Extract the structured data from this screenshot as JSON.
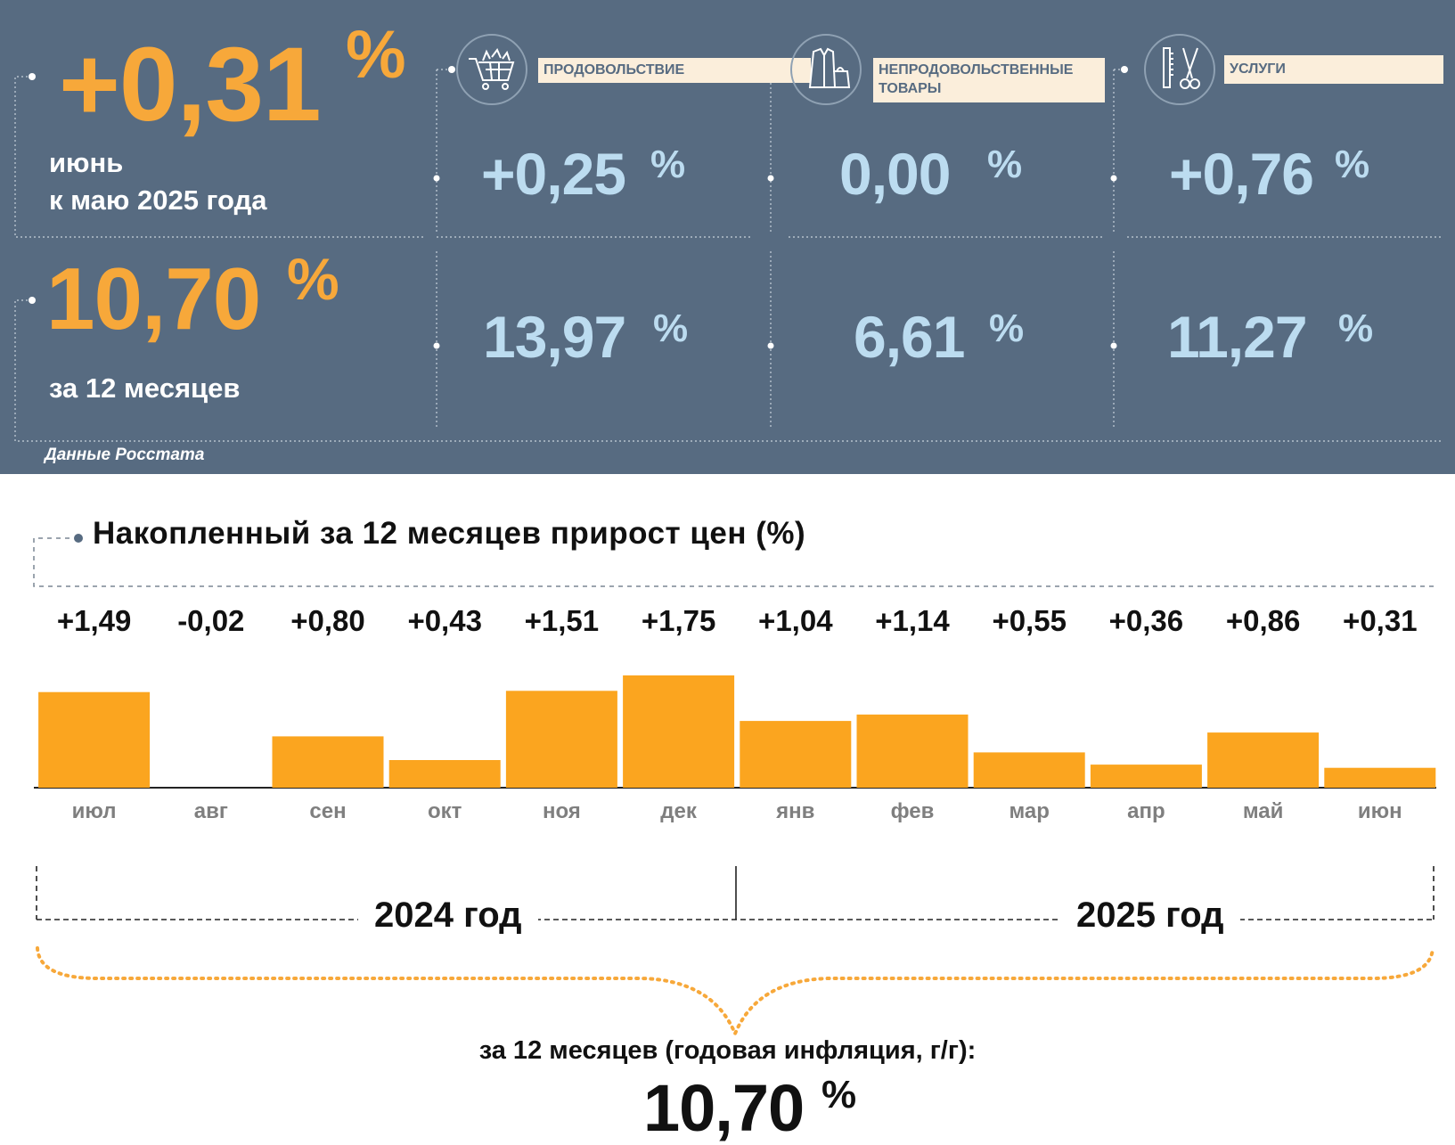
{
  "summary": {
    "month": {
      "value": "+0,31",
      "unit": "%",
      "label_line1": "июнь",
      "label_line2": "к маю 2025 года"
    },
    "year": {
      "value": "10,70",
      "unit": "%",
      "label": "за 12 месяцев"
    },
    "source": "Данные Росстата"
  },
  "categories": [
    {
      "label": "ПРОДОВОЛЬСТВИЕ",
      "label_line2": "",
      "icon": "shopping-cart-icon",
      "month": "+0,25",
      "year": "13,97",
      "unit": "%"
    },
    {
      "label": "НЕПРОДОВОЛЬСТВЕННЫЕ",
      "label_line2": "ТОВАРЫ",
      "icon": "clothing-bag-icon",
      "month": "0,00",
      "year": "6,61",
      "unit": "%"
    },
    {
      "label": "УСЛУГИ",
      "label_line2": "",
      "icon": "comb-scissors-icon",
      "month": "+0,76",
      "year": "11,27",
      "unit": "%"
    }
  ],
  "chart_data": {
    "type": "bar",
    "title": "Накопленный за 12 месяцев прирост цен (%)",
    "categories": [
      "июл",
      "авг",
      "сен",
      "окт",
      "ноя",
      "дек",
      "янв",
      "фев",
      "мар",
      "апр",
      "май",
      "июн"
    ],
    "values": [
      1.49,
      -0.02,
      0.8,
      0.43,
      1.51,
      1.75,
      1.04,
      1.14,
      0.55,
      0.36,
      0.86,
      0.31
    ],
    "value_labels": [
      "+1,49",
      "-0,02",
      "+0,80",
      "+0,43",
      "+1,51",
      "+1,75",
      "+1,04",
      "+1,14",
      "+0,55",
      "+0,36",
      "+0,86",
      "+0,31"
    ],
    "bar_color": "#fba51f",
    "ylim": [
      0,
      1.75
    ],
    "grid": false,
    "legend": "none",
    "year_groups": [
      {
        "label": "2024 год",
        "months": 6
      },
      {
        "label": "2025 год",
        "months": 6
      }
    ],
    "annual_caption": "за 12 месяцев (годовая инфляция, г/г):",
    "annual_value": "10,70",
    "annual_unit": "%"
  },
  "colors": {
    "panel_bg": "#576b81",
    "accent_orange": "#f7a83a",
    "light_blue": "#bcdcf0",
    "label_bg": "#fbeedb"
  }
}
